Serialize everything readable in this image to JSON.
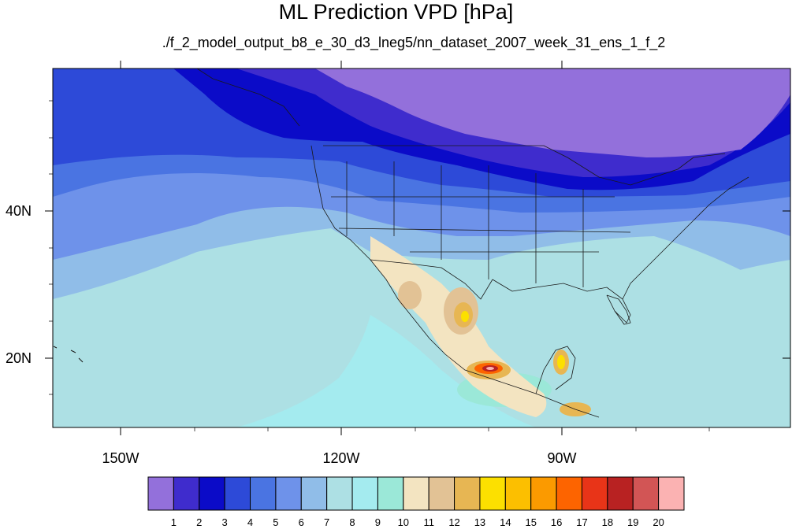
{
  "title": "ML Prediction VPD [hPa]",
  "subtitle": "./f_2_model_output_b8_e_30_d3_lneg5/nn_dataset_2007_week_31_ens_1_f_2",
  "axes": {
    "lat_labels": [
      "40N",
      "20N"
    ],
    "lon_labels": [
      "150W",
      "120W",
      "90W"
    ]
  },
  "colorbar": {
    "labels": [
      "1",
      "2",
      "3",
      "4",
      "5",
      "6",
      "7",
      "8",
      "9",
      "10",
      "11",
      "12",
      "13",
      "14",
      "15",
      "16",
      "17",
      "18",
      "19",
      "20"
    ],
    "colors": [
      "#9370db",
      "#3f2ccd",
      "#0b0bc8",
      "#2d4ad8",
      "#4a74e2",
      "#6e92ea",
      "#90bde8",
      "#ade0e4",
      "#a4ebef",
      "#9be8d8",
      "#f3e4c1",
      "#e2c295",
      "#e7b653",
      "#fce000",
      "#fcbf00",
      "#fb9a00",
      "#fd6400",
      "#e83418",
      "#b82222",
      "#d25555",
      "#fbb2b2"
    ]
  },
  "colors": {
    "frame": "#000000",
    "borders": "#1a1a1a"
  }
}
